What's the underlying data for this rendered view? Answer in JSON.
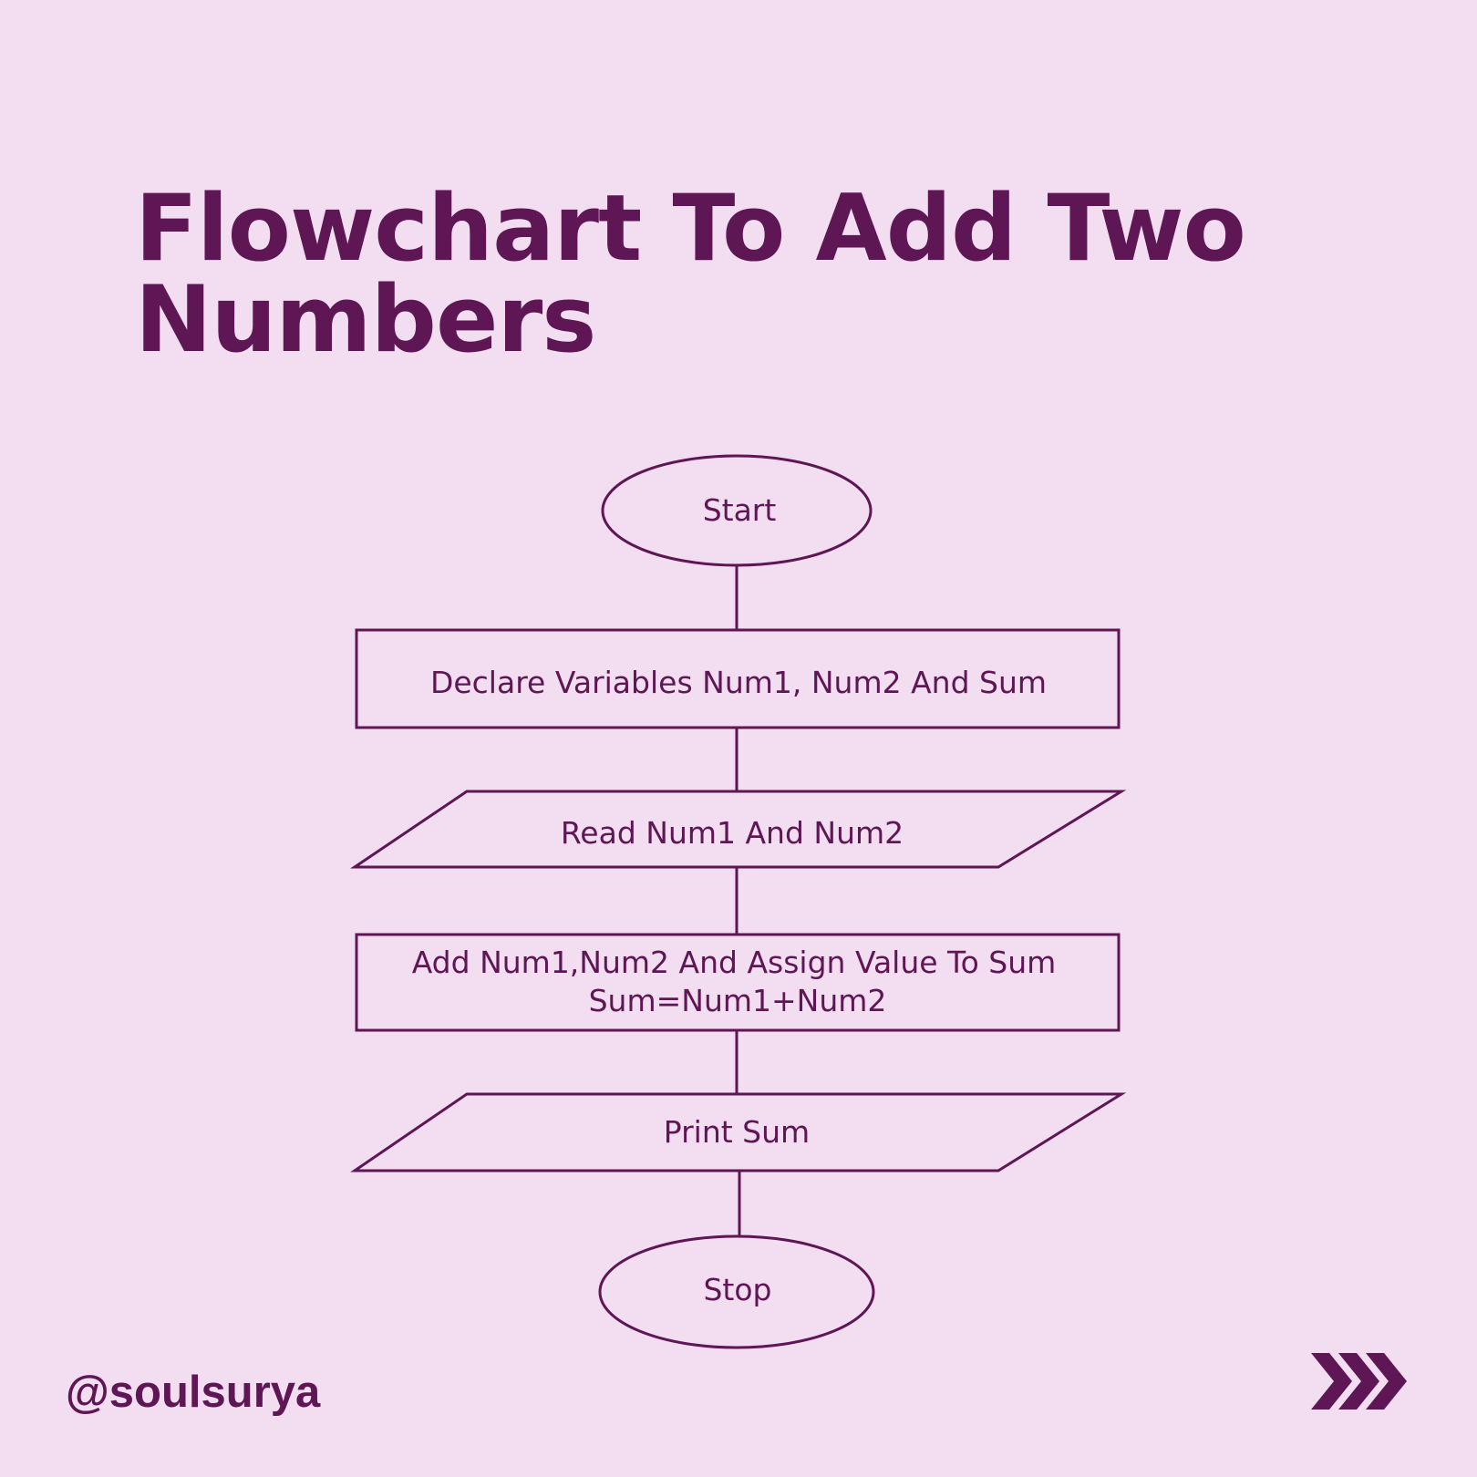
{
  "colors": {
    "background": "#f2ddf1",
    "accent": "#5e1654"
  },
  "title": {
    "line1": "Flowchart To Add Two",
    "line2": "Numbers"
  },
  "flowchart": {
    "start": "Start",
    "declare": "Declare Variables Num1, Num2 And Sum",
    "read": "Read Num1 And Num2",
    "add_line1": "Add Num1,Num2 And Assign Value To Sum",
    "add_line2": "Sum=Num1+Num2",
    "print": "Print Sum",
    "stop": "Stop"
  },
  "footer": {
    "handle": "@soulsurya",
    "next_icon": "triple-chevron-right-icon"
  }
}
